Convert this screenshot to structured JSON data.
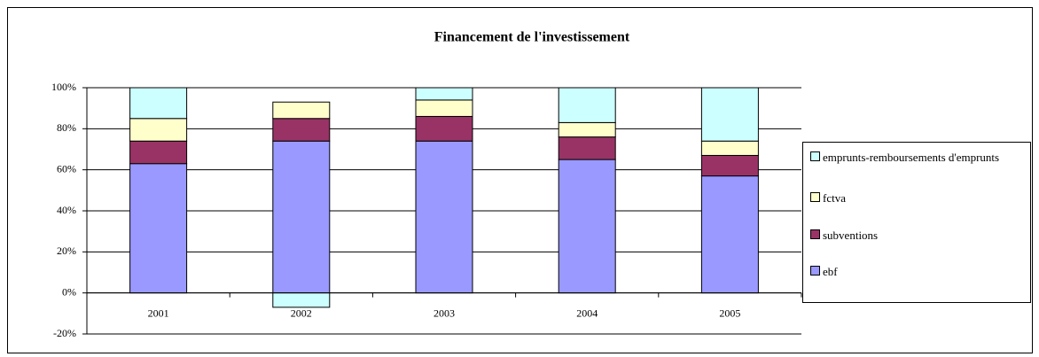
{
  "chart_data": {
    "type": "stacked_bar",
    "title": "Financement de l'investissement",
    "categories": [
      "2001",
      "2002",
      "2003",
      "2004",
      "2005"
    ],
    "series": [
      {
        "name": "ebf",
        "color": "#9999ff",
        "values": [
          63,
          74,
          74,
          65,
          57
        ]
      },
      {
        "name": "subventions",
        "color": "#993366",
        "values": [
          11,
          11,
          12,
          11,
          10
        ]
      },
      {
        "name": "fctva",
        "color": "#ffffcc",
        "values": [
          11,
          8,
          8,
          7,
          7
        ]
      },
      {
        "name": "emprunts-remboursements d'emprunts",
        "color": "#ccffff",
        "values": [
          15,
          -7,
          6,
          17,
          26
        ]
      }
    ],
    "ylim": [
      -20,
      100
    ],
    "yticks": [
      {
        "value": -20,
        "label": "-20%"
      },
      {
        "value": 0,
        "label": "0%"
      },
      {
        "value": 20,
        "label": "20%"
      },
      {
        "value": 40,
        "label": "40%"
      },
      {
        "value": 60,
        "label": "60%"
      },
      {
        "value": 80,
        "label": "80%"
      },
      {
        "value": 100,
        "label": "100%"
      }
    ],
    "grid": true,
    "legend": "right"
  }
}
